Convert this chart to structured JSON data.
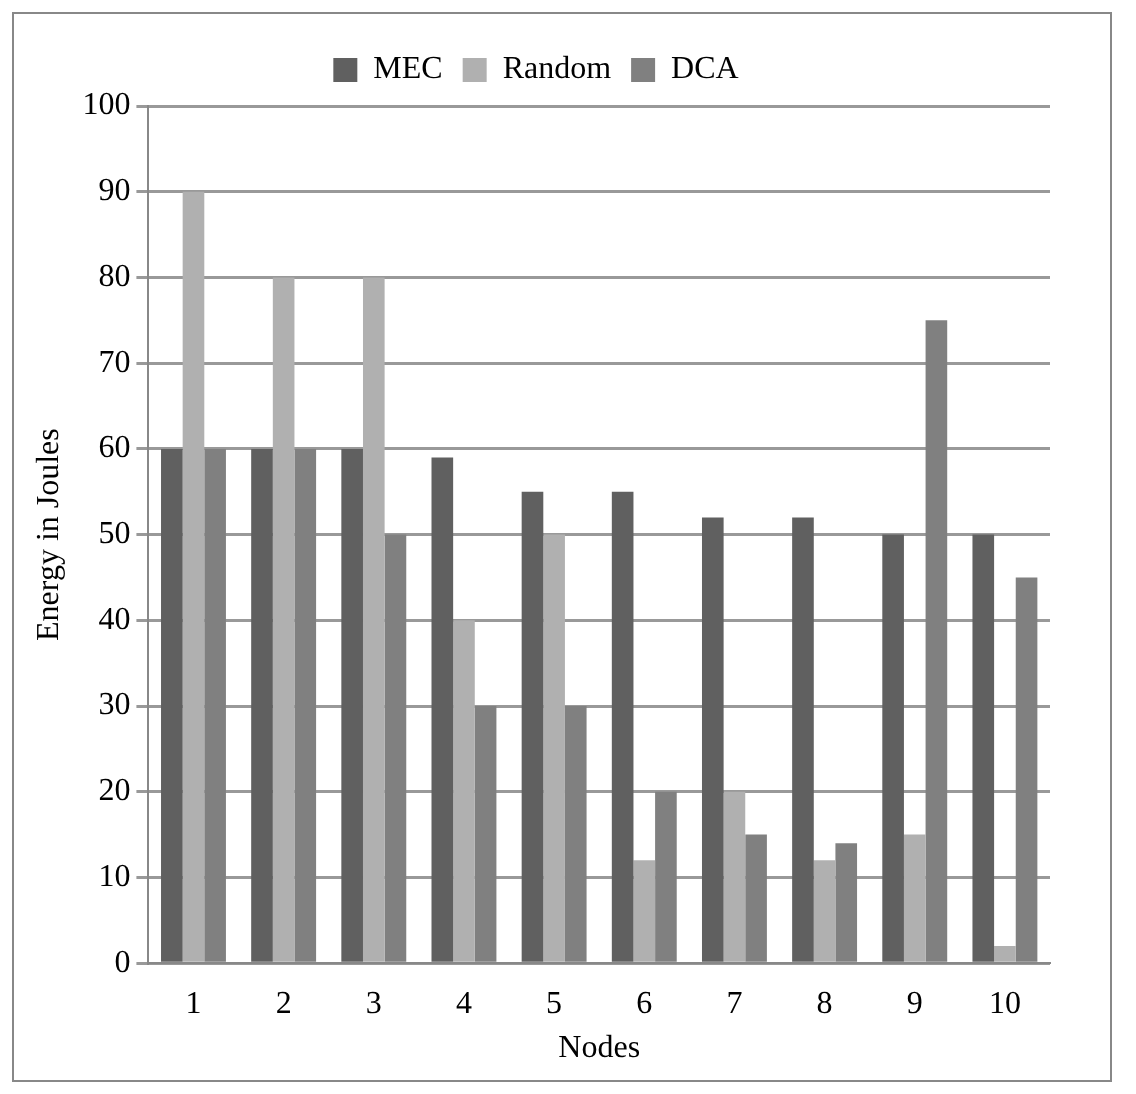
{
  "chart_data": {
    "type": "bar",
    "xlabel": "Nodes",
    "ylabel": "Energy in Joules",
    "categories": [
      "1",
      "2",
      "3",
      "4",
      "5",
      "6",
      "7",
      "8",
      "9",
      "10"
    ],
    "series": [
      {
        "name": "MEC",
        "color": "#606060",
        "values": [
          60,
          60,
          60,
          59,
          55,
          55,
          52,
          52,
          50,
          50
        ]
      },
      {
        "name": "Random",
        "color": "#b0b0b0",
        "values": [
          90,
          80,
          80,
          40,
          50,
          12,
          20,
          12,
          15,
          2
        ]
      },
      {
        "name": "DCA",
        "color": "#808080",
        "values": [
          60,
          60,
          50,
          30,
          30,
          20,
          15,
          14,
          75,
          45
        ]
      }
    ],
    "ylim": [
      0,
      100
    ],
    "yticks": [
      0,
      10,
      20,
      30,
      40,
      50,
      60,
      70,
      80,
      90,
      100
    ],
    "grid": "y",
    "legend": "top"
  }
}
